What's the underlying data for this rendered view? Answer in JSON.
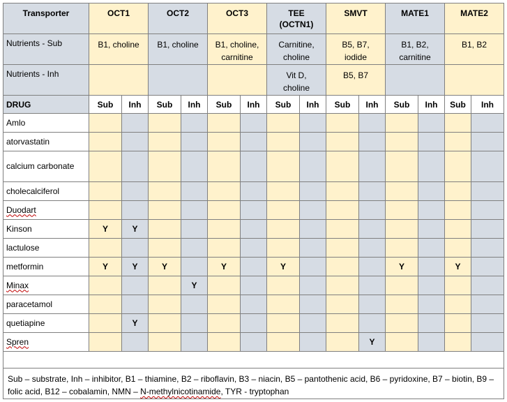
{
  "header": {
    "corner": "Transporter",
    "transporters": [
      {
        "lines": [
          "OCT1"
        ]
      },
      {
        "lines": [
          "OCT2"
        ]
      },
      {
        "lines": [
          "OCT3"
        ]
      },
      {
        "lines": [
          "TEE",
          "(OCTN1)"
        ]
      },
      {
        "lines": [
          "SMVT"
        ]
      },
      {
        "lines": [
          "MATE1"
        ]
      },
      {
        "lines": [
          "MATE2"
        ]
      }
    ]
  },
  "nutrients_sub": {
    "label": "Nutrients - Sub",
    "values": [
      [
        "B1, choline"
      ],
      [
        "B1, choline"
      ],
      [
        "B1, choline,",
        "carnitine"
      ],
      [
        "Carnitine,",
        "choline"
      ],
      [
        "B5, B7,",
        "iodide"
      ],
      [
        "B1, B2,",
        "carnitine"
      ],
      [
        "B1, B2"
      ]
    ]
  },
  "nutrients_inh": {
    "label": "Nutrients - Inh",
    "values": [
      [],
      [],
      [],
      [
        "Vit D,",
        "choline"
      ],
      [
        "B5, B7"
      ],
      [],
      []
    ]
  },
  "drug_header": {
    "label": "DRUG",
    "sub": "Sub",
    "inh": "Inh"
  },
  "drugs": [
    {
      "name": "Amlo",
      "marks": [
        "",
        "",
        "",
        "",
        "",
        "",
        "",
        "",
        "",
        "",
        "",
        "",
        "",
        ""
      ]
    },
    {
      "name": "atorvastatin",
      "marks": [
        "",
        "",
        "",
        "",
        "",
        "",
        "",
        "",
        "",
        "",
        "",
        "",
        "",
        ""
      ]
    },
    {
      "name": "calcium carbonate",
      "marks": [
        "",
        "",
        "",
        "",
        "",
        "",
        "",
        "",
        "",
        "",
        "",
        "",
        "",
        ""
      ]
    },
    {
      "name": "cholecalciferol",
      "marks": [
        "",
        "",
        "",
        "",
        "",
        "",
        "",
        "",
        "",
        "",
        "",
        "",
        "",
        ""
      ]
    },
    {
      "name": "Duodart",
      "marks": [
        "",
        "",
        "",
        "",
        "",
        "",
        "",
        "",
        "",
        "",
        "",
        "",
        "",
        ""
      ]
    },
    {
      "name": "Kinson",
      "marks": [
        "Y",
        "Y",
        "",
        "",
        "",
        "",
        "",
        "",
        "",
        "",
        "",
        "",
        "",
        ""
      ]
    },
    {
      "name": "lactulose",
      "marks": [
        "",
        "",
        "",
        "",
        "",
        "",
        "",
        "",
        "",
        "",
        "",
        "",
        "",
        ""
      ]
    },
    {
      "name": "metformin",
      "marks": [
        "Y",
        "Y",
        "Y",
        "",
        "Y",
        "",
        "Y",
        "",
        "",
        "",
        "Y",
        "",
        "Y",
        ""
      ]
    },
    {
      "name": "Minax",
      "marks": [
        "",
        "",
        "",
        "Y",
        "",
        "",
        "",
        "",
        "",
        "",
        "",
        "",
        "",
        ""
      ]
    },
    {
      "name": "paracetamol",
      "marks": [
        "",
        "",
        "",
        "",
        "",
        "",
        "",
        "",
        "",
        "",
        "",
        "",
        "",
        ""
      ]
    },
    {
      "name": "quetiapine",
      "marks": [
        "",
        "Y",
        "",
        "",
        "",
        "",
        "",
        "",
        "",
        "",
        "",
        "",
        "",
        ""
      ]
    },
    {
      "name": "Spren",
      "marks": [
        "",
        "",
        "",
        "",
        "",
        "",
        "",
        "",
        "",
        "Y",
        "",
        "",
        "",
        ""
      ]
    }
  ],
  "footnote_part1": "Sub – substrate, Inh – inhibitor, B1 – thiamine, B2 – riboflavin, B3 – niacin, B5 – pantothenic acid, B6 – pyridoxine, B7 – biotin, B9 – folic acid, B12 – cobalamin, NMN – ",
  "footnote_wavy": "N-methylnicotinamide",
  "footnote_part2": ", TYR - tryptophan"
}
